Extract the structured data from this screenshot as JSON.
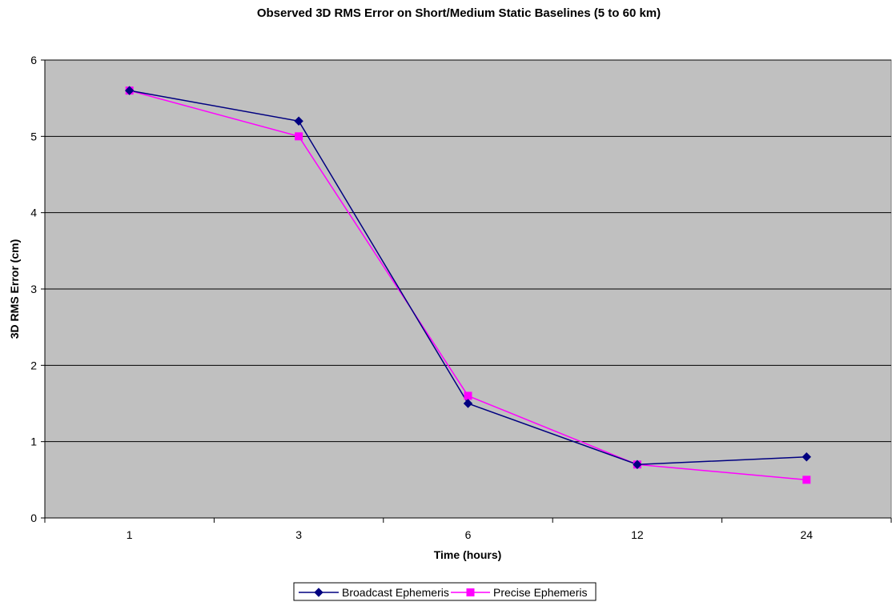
{
  "chart_data": {
    "type": "line",
    "title": "Observed 3D RMS Error on Short/Medium Static Baselines (5 to 60 km)",
    "xlabel": "Time (hours)",
    "ylabel": "3D RMS Error (cm)",
    "categories": [
      "1",
      "3",
      "6",
      "12",
      "24"
    ],
    "ylim": [
      0,
      6
    ],
    "yticks": [
      "0",
      "1",
      "2",
      "3",
      "4",
      "5",
      "6"
    ],
    "grid": "horizontal",
    "plot_background": "#C0C0C0",
    "legend_position": "bottom",
    "series": [
      {
        "name": "Broadcast Ephemeris",
        "values": [
          5.6,
          5.2,
          1.5,
          0.7,
          0.8
        ],
        "color": "#000080",
        "marker": "diamond"
      },
      {
        "name": "Precise Ephemeris",
        "values": [
          5.6,
          5.0,
          1.6,
          0.7,
          0.5
        ],
        "color": "#FF00FF",
        "marker": "square"
      }
    ]
  }
}
